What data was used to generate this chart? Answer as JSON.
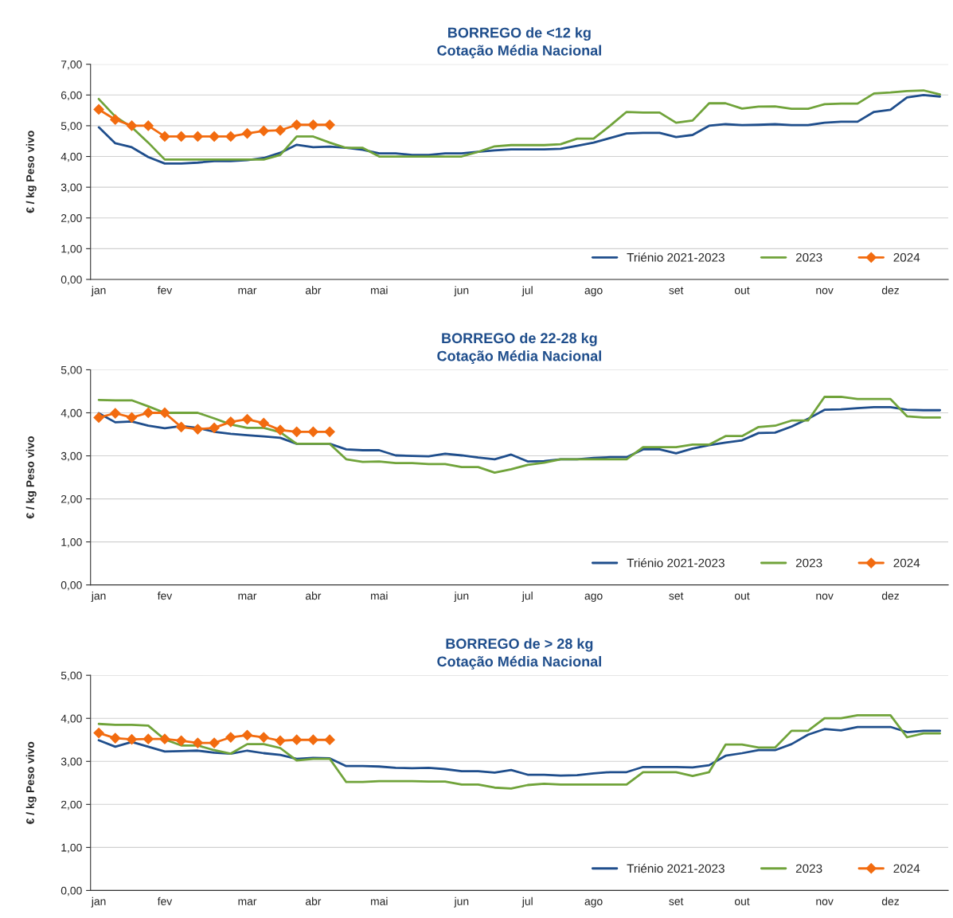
{
  "chart_data": [
    {
      "type": "line",
      "title": "BORREGO de <12 kg",
      "subtitle": "Cotação Média Nacional",
      "ylabel": "€ / kg Peso vivo",
      "categories": [
        "jan",
        null,
        null,
        null,
        "fev",
        null,
        null,
        null,
        null,
        "mar",
        null,
        null,
        null,
        "abr",
        null,
        null,
        null,
        "mai",
        null,
        null,
        null,
        null,
        "jun",
        null,
        null,
        null,
        "jul",
        null,
        null,
        null,
        "ago",
        null,
        null,
        null,
        null,
        "set",
        null,
        null,
        null,
        "out",
        null,
        null,
        null,
        null,
        "nov",
        null,
        null,
        null,
        "dez",
        null,
        null,
        null
      ],
      "ylim": [
        0,
        7
      ],
      "yticks": [
        {
          "value": 0,
          "label": "0,00"
        },
        {
          "value": 1,
          "label": "1,00"
        },
        {
          "value": 2,
          "label": "2,00"
        },
        {
          "value": 3,
          "label": "3,00"
        },
        {
          "value": 4,
          "label": "4,00"
        },
        {
          "value": 5,
          "label": "5,00"
        },
        {
          "value": 6,
          "label": "6,00"
        },
        {
          "value": 7,
          "label": "7,00"
        }
      ],
      "grid": "y",
      "legend": "bottom right",
      "series": [
        {
          "name": "Triénio 2021-2023",
          "color": "#1f4e8c",
          "values": [
            4.95,
            4.43,
            4.3,
            3.98,
            3.77,
            3.77,
            3.8,
            3.85,
            3.85,
            3.88,
            3.95,
            4.12,
            4.38,
            4.3,
            4.32,
            4.28,
            4.22,
            4.1,
            4.1,
            4.05,
            4.05,
            4.1,
            4.1,
            4.15,
            4.2,
            4.23,
            4.23,
            4.23,
            4.25,
            4.35,
            4.45,
            4.6,
            4.75,
            4.77,
            4.77,
            4.63,
            4.7,
            5.0,
            5.05,
            5.02,
            5.03,
            5.05,
            5.02,
            5.02,
            5.1,
            5.13,
            5.13,
            5.45,
            5.52,
            5.92,
            6.0,
            5.95
          ]
        },
        {
          "name": "2023",
          "color": "#70a33a",
          "values": [
            5.87,
            5.3,
            4.95,
            4.45,
            3.9,
            3.9,
            3.9,
            3.9,
            3.9,
            3.9,
            3.9,
            4.05,
            4.65,
            4.65,
            4.45,
            4.28,
            4.28,
            4.0,
            4.0,
            4.0,
            4.0,
            4.0,
            4.0,
            4.15,
            4.33,
            4.37,
            4.37,
            4.37,
            4.4,
            4.58,
            4.58,
            5.0,
            5.45,
            5.43,
            5.43,
            5.1,
            5.17,
            5.73,
            5.73,
            5.56,
            5.62,
            5.63,
            5.55,
            5.55,
            5.7,
            5.72,
            5.72,
            6.05,
            6.08,
            6.13,
            6.15,
            6.02
          ]
        },
        {
          "name": "2024",
          "color": "#f26b0f",
          "marker": "diamond",
          "values": [
            5.53,
            5.2,
            5.0,
            5.0,
            4.65,
            4.65,
            4.65,
            4.65,
            4.65,
            4.75,
            4.83,
            4.85,
            5.03,
            5.03,
            5.03,
            null,
            null,
            null,
            null,
            null,
            null,
            null,
            null,
            null,
            null,
            null,
            null,
            null,
            null,
            null,
            null,
            null,
            null,
            null,
            null,
            null,
            null,
            null,
            null,
            null,
            null,
            null,
            null,
            null,
            null,
            null,
            null,
            null,
            null,
            null,
            null,
            null
          ]
        }
      ]
    },
    {
      "type": "line",
      "title": "BORREGO de 22-28 kg",
      "subtitle": "Cotação Média Nacional",
      "ylabel": "€ / kg Peso vivo",
      "categories": [
        "jan",
        null,
        null,
        null,
        "fev",
        null,
        null,
        null,
        null,
        "mar",
        null,
        null,
        null,
        "abr",
        null,
        null,
        null,
        "mai",
        null,
        null,
        null,
        null,
        "jun",
        null,
        null,
        null,
        "jul",
        null,
        null,
        null,
        "ago",
        null,
        null,
        null,
        null,
        "set",
        null,
        null,
        null,
        "out",
        null,
        null,
        null,
        null,
        "nov",
        null,
        null,
        null,
        "dez",
        null,
        null,
        null
      ],
      "ylim": [
        0,
        5
      ],
      "yticks": [
        {
          "value": 0,
          "label": "0,00"
        },
        {
          "value": 1,
          "label": "1,00"
        },
        {
          "value": 2,
          "label": "2,00"
        },
        {
          "value": 3,
          "label": "3,00"
        },
        {
          "value": 4,
          "label": "4,00"
        },
        {
          "value": 5,
          "label": "5,00"
        }
      ],
      "grid": "y",
      "legend": "bottom right",
      "series": [
        {
          "name": "Triénio 2021-2023",
          "color": "#1f4e8c",
          "values": [
            3.99,
            3.78,
            3.8,
            3.7,
            3.64,
            3.69,
            3.65,
            3.56,
            3.51,
            3.48,
            3.45,
            3.42,
            3.28,
            3.28,
            3.28,
            3.15,
            3.13,
            3.13,
            3.01,
            3.0,
            2.99,
            3.05,
            3.01,
            2.96,
            2.92,
            3.03,
            2.87,
            2.88,
            2.92,
            2.92,
            2.95,
            2.97,
            2.97,
            3.15,
            3.15,
            3.06,
            3.17,
            3.25,
            3.31,
            3.36,
            3.53,
            3.54,
            3.68,
            3.86,
            4.07,
            4.08,
            4.11,
            4.13,
            4.13,
            4.07,
            4.06,
            4.06
          ]
        },
        {
          "name": "2023",
          "color": "#70a33a",
          "values": [
            4.3,
            4.29,
            4.29,
            4.15,
            4.0,
            4.0,
            4.0,
            3.87,
            3.73,
            3.65,
            3.65,
            3.55,
            3.28,
            3.28,
            3.28,
            2.92,
            2.86,
            2.87,
            2.83,
            2.83,
            2.81,
            2.81,
            2.74,
            2.74,
            2.61,
            2.69,
            2.79,
            2.84,
            2.92,
            2.92,
            2.92,
            2.92,
            2.92,
            3.2,
            3.2,
            3.2,
            3.26,
            3.26,
            3.46,
            3.46,
            3.67,
            3.7,
            3.82,
            3.82,
            4.37,
            4.37,
            4.32,
            4.32,
            4.32,
            3.92,
            3.89,
            3.89
          ]
        },
        {
          "name": "2024",
          "color": "#f26b0f",
          "marker": "diamond",
          "values": [
            3.89,
            3.99,
            3.89,
            4.0,
            4.0,
            3.67,
            3.62,
            3.65,
            3.79,
            3.85,
            3.76,
            3.6,
            3.56,
            3.56,
            3.56,
            null,
            null,
            null,
            null,
            null,
            null,
            null,
            null,
            null,
            null,
            null,
            null,
            null,
            null,
            null,
            null,
            null,
            null,
            null,
            null,
            null,
            null,
            null,
            null,
            null,
            null,
            null,
            null,
            null,
            null,
            null,
            null,
            null,
            null,
            null,
            null,
            null
          ]
        }
      ]
    },
    {
      "type": "line",
      "title": "BORREGO de > 28 kg",
      "subtitle": "Cotação Média Nacional",
      "ylabel": "€ / kg Peso vivo",
      "categories": [
        "jan",
        null,
        null,
        null,
        "fev",
        null,
        null,
        null,
        null,
        "mar",
        null,
        null,
        null,
        "abr",
        null,
        null,
        null,
        "mai",
        null,
        null,
        null,
        null,
        "jun",
        null,
        null,
        null,
        "jul",
        null,
        null,
        null,
        "ago",
        null,
        null,
        null,
        null,
        "set",
        null,
        null,
        null,
        "out",
        null,
        null,
        null,
        null,
        "nov",
        null,
        null,
        null,
        "dez",
        null,
        null,
        null
      ],
      "ylim": [
        0,
        5
      ],
      "yticks": [
        {
          "value": 0,
          "label": "0,00"
        },
        {
          "value": 1,
          "label": "1,00"
        },
        {
          "value": 2,
          "label": "2,00"
        },
        {
          "value": 3,
          "label": "3,00"
        },
        {
          "value": 4,
          "label": "4,00"
        },
        {
          "value": 5,
          "label": "5,00"
        }
      ],
      "grid": "y",
      "legend": "bottom right",
      "series": [
        {
          "name": "Triénio 2021-2023",
          "color": "#1f4e8c",
          "values": [
            3.49,
            3.34,
            3.45,
            3.34,
            3.23,
            3.24,
            3.25,
            3.2,
            3.18,
            3.25,
            3.19,
            3.15,
            3.06,
            3.08,
            3.07,
            2.89,
            2.89,
            2.88,
            2.85,
            2.84,
            2.85,
            2.82,
            2.77,
            2.77,
            2.74,
            2.8,
            2.69,
            2.69,
            2.67,
            2.68,
            2.72,
            2.75,
            2.75,
            2.87,
            2.87,
            2.87,
            2.86,
            2.91,
            3.13,
            3.19,
            3.26,
            3.26,
            3.4,
            3.62,
            3.75,
            3.72,
            3.8,
            3.8,
            3.8,
            3.68,
            3.71,
            3.71
          ]
        },
        {
          "name": "2023",
          "color": "#70a33a",
          "values": [
            3.87,
            3.85,
            3.85,
            3.83,
            3.51,
            3.37,
            3.37,
            3.26,
            3.18,
            3.4,
            3.4,
            3.31,
            3.02,
            3.06,
            3.06,
            2.52,
            2.52,
            2.54,
            2.54,
            2.54,
            2.53,
            2.53,
            2.46,
            2.46,
            2.39,
            2.37,
            2.45,
            2.48,
            2.46,
            2.46,
            2.46,
            2.46,
            2.46,
            2.75,
            2.75,
            2.75,
            2.66,
            2.75,
            3.39,
            3.39,
            3.32,
            3.32,
            3.71,
            3.71,
            4.0,
            4.0,
            4.07,
            4.07,
            4.07,
            3.56,
            3.65,
            3.65
          ]
        },
        {
          "name": "2024",
          "color": "#f26b0f",
          "marker": "diamond",
          "values": [
            3.66,
            3.54,
            3.51,
            3.52,
            3.52,
            3.48,
            3.43,
            3.43,
            3.56,
            3.61,
            3.56,
            3.48,
            3.5,
            3.5,
            3.5,
            null,
            null,
            null,
            null,
            null,
            null,
            null,
            null,
            null,
            null,
            null,
            null,
            null,
            null,
            null,
            null,
            null,
            null,
            null,
            null,
            null,
            null,
            null,
            null,
            null,
            null,
            null,
            null,
            null,
            null,
            null,
            null,
            null,
            null,
            null,
            null,
            null
          ]
        }
      ]
    }
  ]
}
